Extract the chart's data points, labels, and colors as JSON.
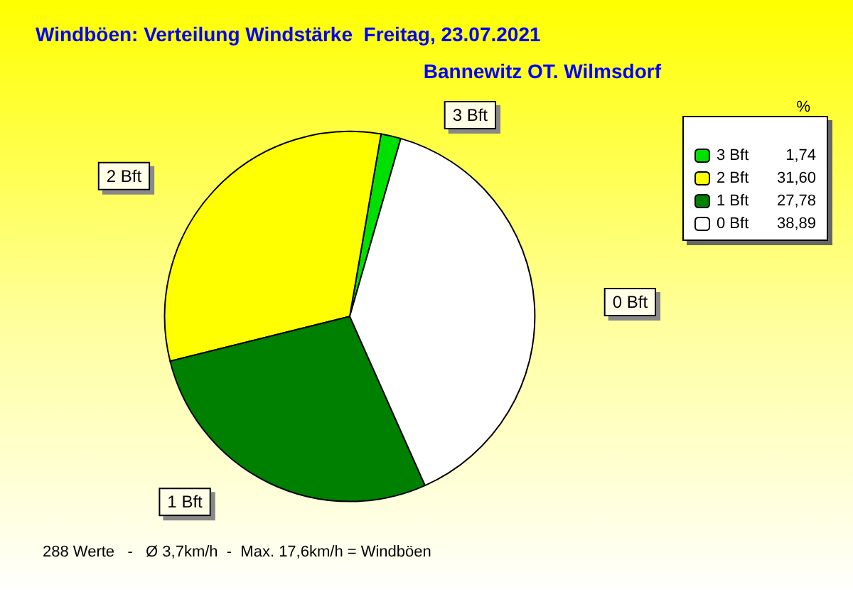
{
  "chart_data": {
    "type": "pie",
    "title": "Windböen: Verteilung Windstärke  Freitag, 23.07.2021",
    "subtitle": "Bannewitz OT. Wilmsdorf",
    "legend_title": "%",
    "categories": [
      "3 Bft",
      "2 Bft",
      "1 Bft",
      "0 Bft"
    ],
    "values": [
      1.74,
      31.6,
      27.78,
      38.89
    ],
    "value_labels": [
      "1,74",
      "31,60",
      "27,78",
      "38,89"
    ],
    "colors": [
      "#00e000",
      "#ffff00",
      "#008000",
      "#ffffff"
    ],
    "legend": "top right",
    "annotations": [
      "288 Werte   -   Ø 3,7km/h  -  Max. 17,6km/h = Windböen"
    ]
  }
}
